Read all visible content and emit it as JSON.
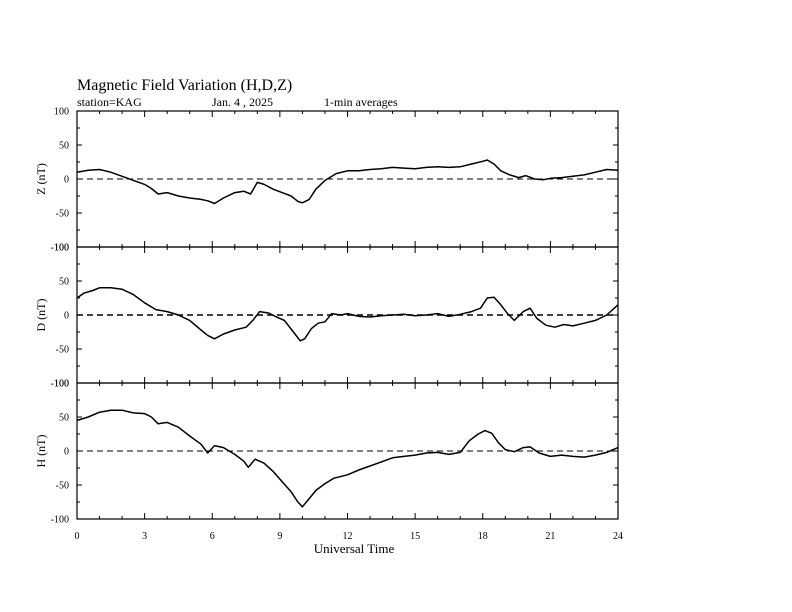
{
  "chart_data": {
    "type": "line",
    "title": "Magnetic Field Variation (H,D,Z)",
    "subtitle": {
      "station": "station=KAG",
      "date": "Jan. 4  , 2025",
      "averaging": "1-min averages"
    },
    "xlabel": "Universal Time",
    "xlim": [
      0,
      24
    ],
    "xticks": [
      0,
      3,
      6,
      9,
      12,
      15,
      18,
      21,
      24
    ],
    "line_color": "#000000",
    "panels": [
      {
        "name": "Z",
        "ylabel": "Z (nT)",
        "ylim": [
          -100,
          100
        ],
        "yticks": [
          -100,
          -50,
          0,
          50,
          100
        ],
        "zero_line": "dashed",
        "x": [
          0,
          0.5,
          1.0,
          1.5,
          2.0,
          2.5,
          3.0,
          3.3,
          3.6,
          4.0,
          4.5,
          5.0,
          5.5,
          5.8,
          6.1,
          6.5,
          7.0,
          7.4,
          7.7,
          8.0,
          8.3,
          8.7,
          9.1,
          9.5,
          9.8,
          10.0,
          10.3,
          10.6,
          11.0,
          11.5,
          12.0,
          12.5,
          13.0,
          13.5,
          14.0,
          14.5,
          15.0,
          15.5,
          16.0,
          16.5,
          17.0,
          17.5,
          18.0,
          18.2,
          18.5,
          18.8,
          19.2,
          19.6,
          19.9,
          20.3,
          20.7,
          21.0,
          21.5,
          22.0,
          22.5,
          23.0,
          23.5,
          24.0
        ],
        "y": [
          10,
          13,
          14,
          10,
          4,
          -2,
          -8,
          -14,
          -22,
          -20,
          -25,
          -28,
          -30,
          -32,
          -36,
          -28,
          -20,
          -18,
          -22,
          -5,
          -8,
          -15,
          -20,
          -25,
          -33,
          -35,
          -30,
          -15,
          -2,
          8,
          12,
          12,
          14,
          15,
          17,
          16,
          15,
          17,
          18,
          17,
          18,
          22,
          26,
          28,
          22,
          12,
          6,
          2,
          5,
          0,
          -1,
          1,
          2,
          4,
          6,
          10,
          14,
          13
        ]
      },
      {
        "name": "D",
        "ylabel": "D (nT)",
        "ylim": [
          -100,
          100
        ],
        "yticks": [
          -100,
          -50,
          0,
          50,
          100
        ],
        "zero_line": "dashed",
        "x": [
          0,
          0.3,
          0.7,
          1.0,
          1.5,
          2.0,
          2.5,
          3.0,
          3.5,
          4.0,
          4.5,
          5.0,
          5.5,
          5.8,
          6.1,
          6.5,
          7.0,
          7.5,
          7.8,
          8.1,
          8.5,
          8.8,
          9.2,
          9.6,
          9.9,
          10.1,
          10.4,
          10.7,
          11.0,
          11.3,
          11.7,
          12.0,
          12.5,
          13.0,
          13.5,
          14.0,
          14.5,
          15.0,
          15.5,
          16.0,
          16.5,
          17.0,
          17.5,
          17.9,
          18.2,
          18.5,
          18.8,
          19.1,
          19.4,
          19.8,
          20.1,
          20.4,
          20.8,
          21.2,
          21.6,
          22.0,
          22.5,
          23.0,
          23.5,
          24.0
        ],
        "y": [
          25,
          32,
          36,
          40,
          40,
          38,
          30,
          18,
          8,
          5,
          0,
          -8,
          -22,
          -30,
          -35,
          -28,
          -22,
          -18,
          -8,
          5,
          3,
          -2,
          -8,
          -25,
          -38,
          -35,
          -20,
          -12,
          -10,
          2,
          0,
          2,
          -2,
          -3,
          -1,
          0,
          1,
          -1,
          0,
          2,
          -2,
          1,
          5,
          10,
          25,
          26,
          15,
          2,
          -8,
          5,
          10,
          -5,
          -15,
          -18,
          -14,
          -16,
          -12,
          -8,
          0,
          15
        ]
      },
      {
        "name": "H",
        "ylabel": "H (nT)",
        "ylim": [
          -100,
          100
        ],
        "yticks": [
          -100,
          -50,
          0,
          50,
          100
        ],
        "zero_line": "dashed",
        "x": [
          0,
          0.5,
          1.0,
          1.5,
          2.0,
          2.5,
          3.0,
          3.3,
          3.6,
          4.0,
          4.5,
          5.0,
          5.5,
          5.8,
          6.1,
          6.5,
          7.0,
          7.4,
          7.6,
          7.9,
          8.3,
          8.7,
          9.1,
          9.5,
          9.8,
          10.0,
          10.3,
          10.6,
          11.0,
          11.4,
          12.0,
          12.5,
          13.0,
          13.5,
          14.0,
          14.5,
          15.0,
          15.5,
          16.0,
          16.5,
          17.0,
          17.4,
          17.8,
          18.1,
          18.4,
          18.7,
          19.0,
          19.4,
          19.8,
          20.1,
          20.5,
          21.0,
          21.5,
          22.0,
          22.5,
          23.0,
          23.5,
          24.0
        ],
        "y": [
          45,
          50,
          57,
          60,
          60,
          56,
          55,
          50,
          40,
          42,
          35,
          22,
          10,
          -3,
          8,
          5,
          -5,
          -15,
          -24,
          -12,
          -18,
          -30,
          -45,
          -60,
          -75,
          -82,
          -70,
          -58,
          -48,
          -40,
          -35,
          -28,
          -22,
          -16,
          -10,
          -8,
          -6,
          -3,
          -2,
          -5,
          -2,
          15,
          25,
          30,
          26,
          12,
          2,
          -1,
          5,
          6,
          -3,
          -8,
          -6,
          -8,
          -9,
          -6,
          -2,
          5
        ]
      }
    ]
  }
}
